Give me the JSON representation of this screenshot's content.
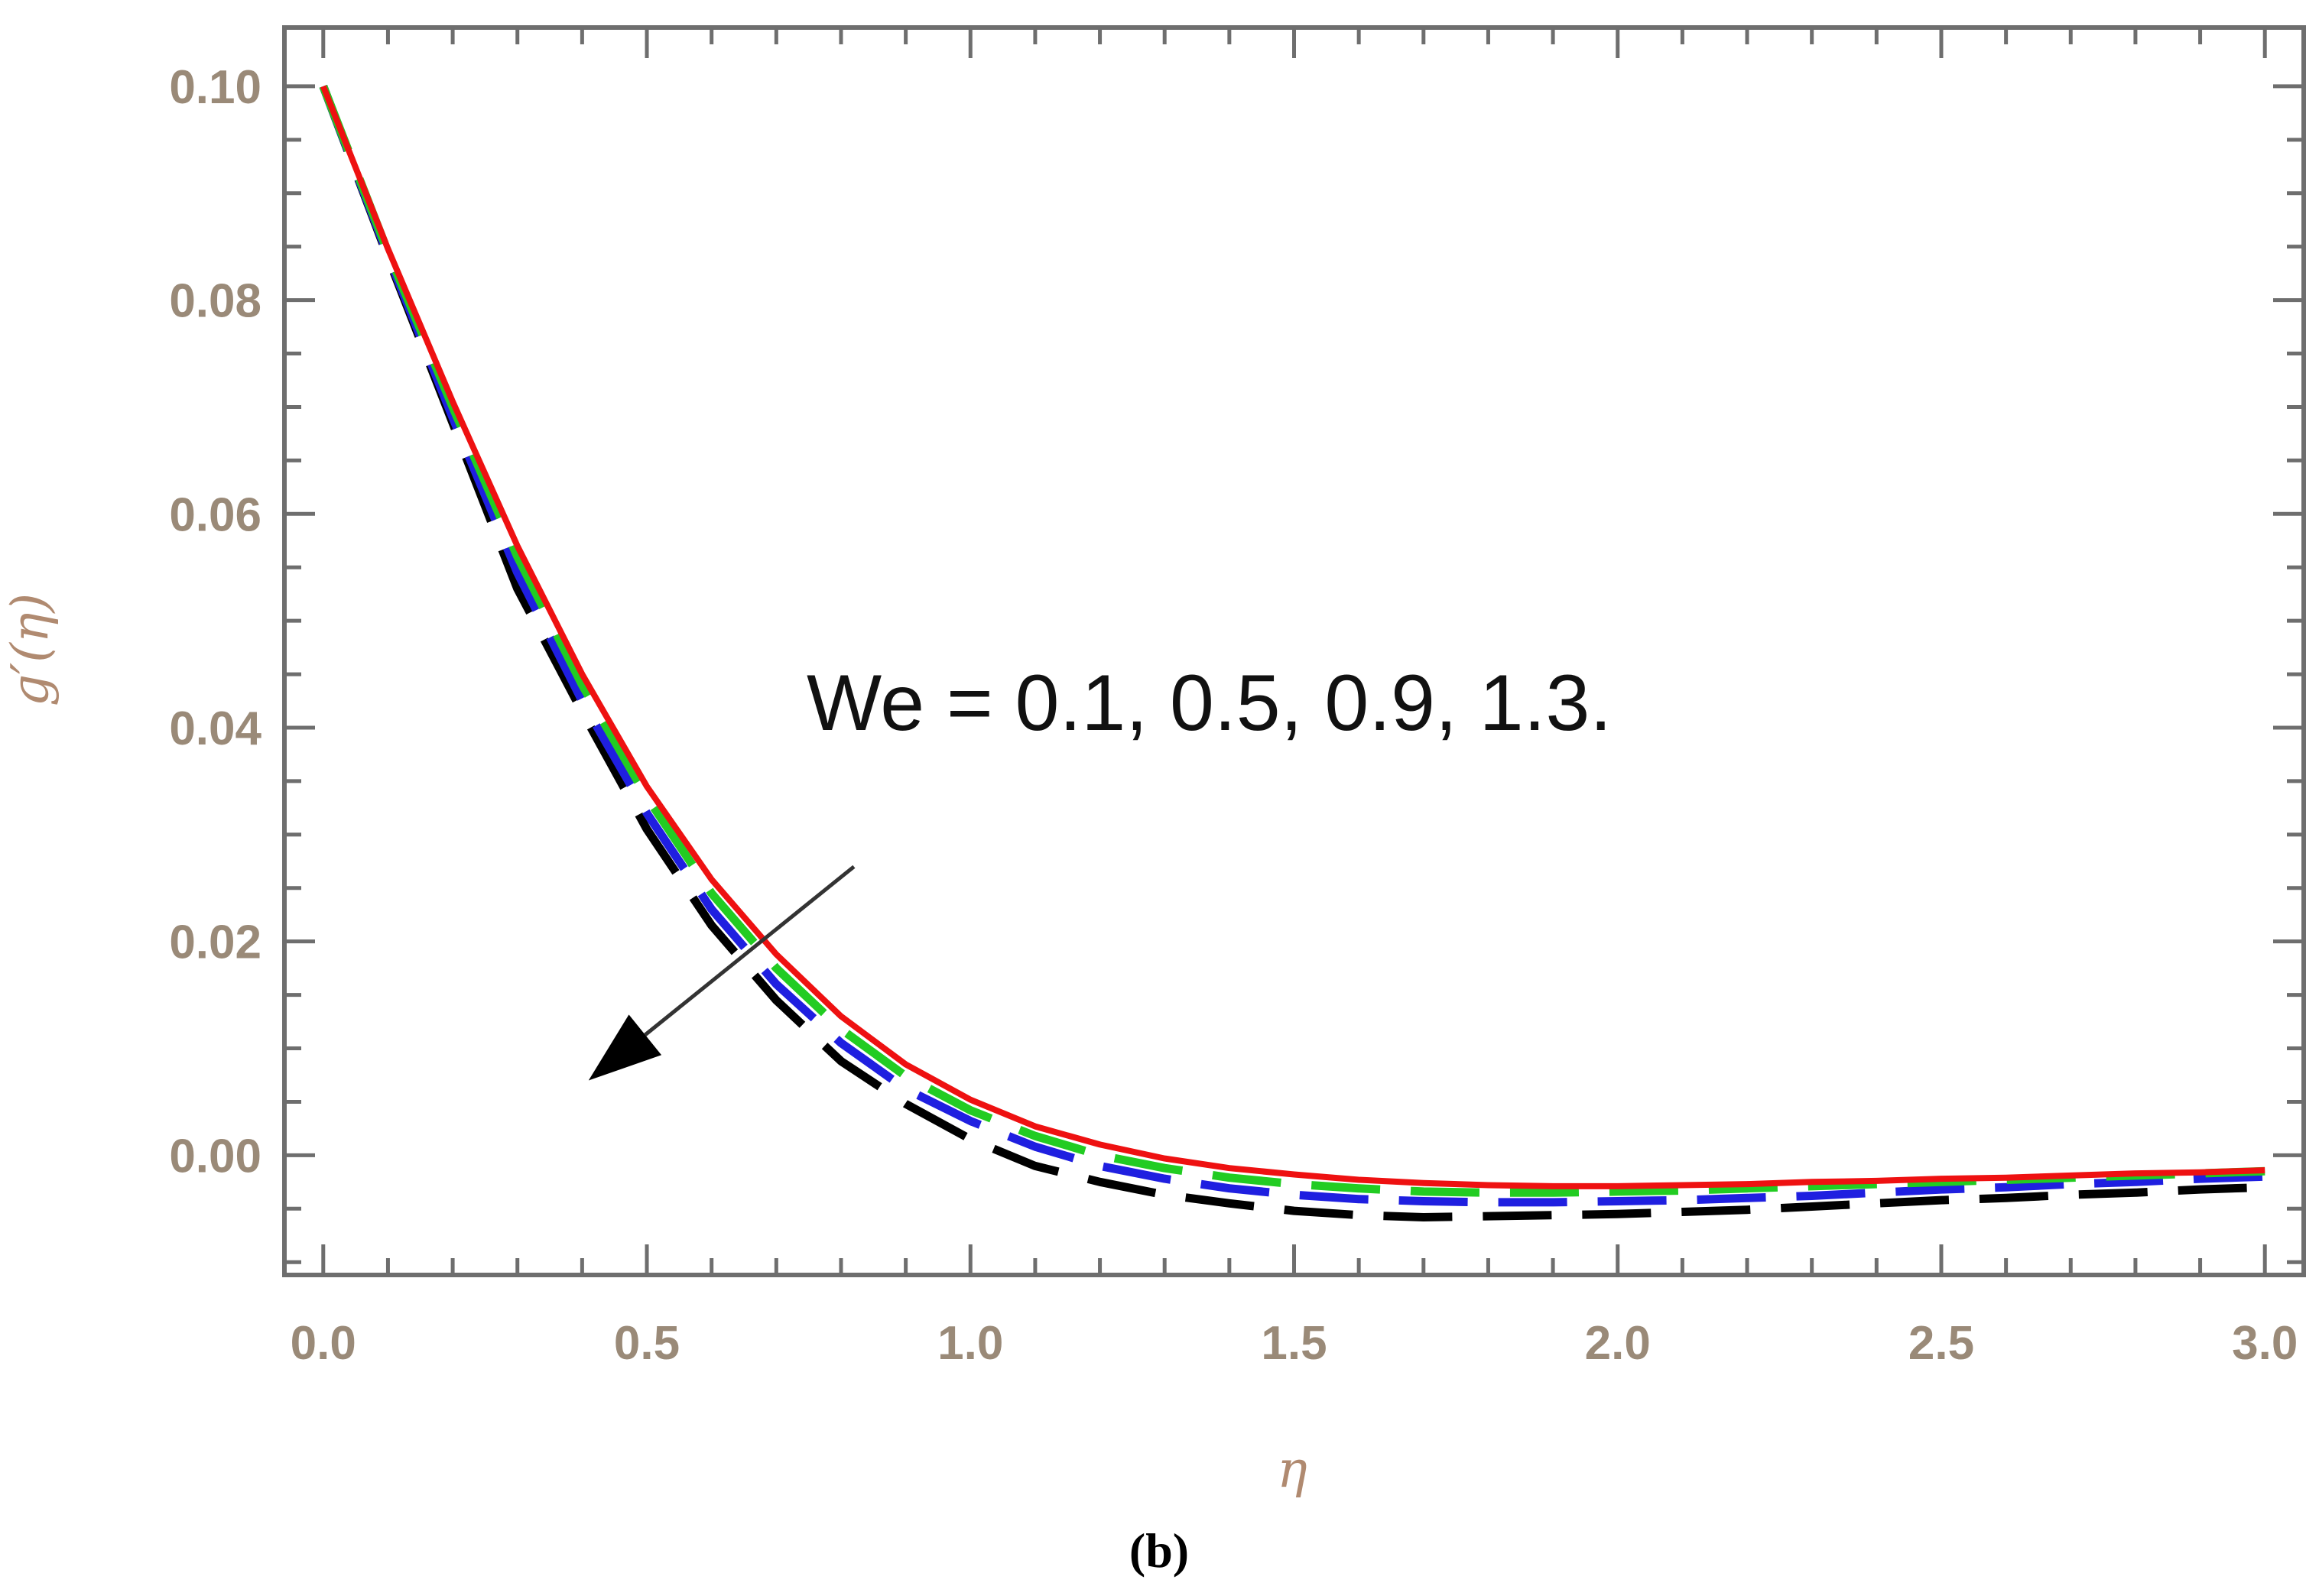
{
  "chart_data": {
    "type": "line",
    "title": "",
    "xlabel": "η",
    "ylabel": "g′(η)",
    "xlim": [
      -0.06,
      3.06
    ],
    "ylim": [
      -0.0112,
      0.1055
    ],
    "xticks": [
      {
        "value": 0.0,
        "label": "0.0"
      },
      {
        "value": 0.5,
        "label": "0.5"
      },
      {
        "value": 1.0,
        "label": "1.0"
      },
      {
        "value": 1.5,
        "label": "1.5"
      },
      {
        "value": 2.0,
        "label": "2.0"
      },
      {
        "value": 2.5,
        "label": "2.5"
      },
      {
        "value": 3.0,
        "label": "3.0"
      }
    ],
    "yticks": [
      {
        "value": 0.0,
        "label": "0.00"
      },
      {
        "value": 0.02,
        "label": "0.02"
      },
      {
        "value": 0.04,
        "label": "0.04"
      },
      {
        "value": 0.06,
        "label": "0.06"
      },
      {
        "value": 0.08,
        "label": "0.08"
      },
      {
        "value": 0.1,
        "label": "0.10"
      }
    ],
    "grid": false,
    "annotation": "We = 0.1, 0.5, 0.9, 1.3.",
    "arrow": {
      "from": [
        0.82,
        0.027
      ],
      "to": [
        0.41,
        0.007
      ]
    },
    "series": [
      {
        "color": "#000000",
        "dash": "dashed",
        "x": [
          0.0,
          0.1,
          0.2,
          0.3,
          0.4,
          0.5,
          0.6,
          0.7,
          0.8,
          0.9,
          1.0,
          1.1,
          1.2,
          1.3,
          1.4,
          1.5,
          1.6,
          1.7,
          1.8,
          1.9,
          2.0,
          2.1,
          2.2,
          2.3,
          2.4,
          2.5,
          2.6,
          2.7,
          2.8,
          2.9,
          3.0
        ],
        "y": [
          0.1,
          0.084,
          0.0685,
          0.053,
          0.0415,
          0.0305,
          0.0215,
          0.0145,
          0.0088,
          0.0048,
          0.0015,
          -0.001,
          -0.0025,
          -0.0037,
          -0.0045,
          -0.0052,
          -0.0056,
          -0.0058,
          -0.0057,
          -0.0056,
          -0.0055,
          -0.0053,
          -0.0051,
          -0.0048,
          -0.0045,
          -0.0042,
          -0.004,
          -0.0037,
          -0.0035,
          -0.0032,
          -0.003
        ]
      },
      {
        "color": "#1f1fe0",
        "dash": "dashed",
        "x": [
          0.0,
          0.1,
          0.2,
          0.3,
          0.4,
          0.5,
          0.6,
          0.7,
          0.8,
          0.9,
          1.0,
          1.1,
          1.2,
          1.3,
          1.4,
          1.5,
          1.6,
          1.7,
          1.8,
          1.9,
          2.0,
          2.1,
          2.2,
          2.3,
          2.4,
          2.5,
          2.6,
          2.7,
          2.8,
          2.9,
          3.0
        ],
        "y": [
          0.1,
          0.0842,
          0.069,
          0.0545,
          0.0425,
          0.032,
          0.023,
          0.016,
          0.0105,
          0.0062,
          0.0032,
          0.0008,
          -0.001,
          -0.0022,
          -0.0031,
          -0.0037,
          -0.0041,
          -0.0043,
          -0.0044,
          -0.0044,
          -0.0043,
          -0.0042,
          -0.004,
          -0.0038,
          -0.0035,
          -0.0032,
          -0.003,
          -0.0027,
          -0.0025,
          -0.0022,
          -0.002
        ]
      },
      {
        "color": "#22cc22",
        "dash": "dashed",
        "x": [
          0.0,
          0.1,
          0.2,
          0.3,
          0.4,
          0.5,
          0.6,
          0.7,
          0.8,
          0.9,
          1.0,
          1.1,
          1.2,
          1.3,
          1.4,
          1.5,
          1.6,
          1.7,
          1.8,
          1.9,
          2.0,
          2.1,
          2.2,
          2.3,
          2.4,
          2.5,
          2.6,
          2.7,
          2.8,
          2.9,
          3.0
        ],
        "y": [
          0.1,
          0.0845,
          0.07,
          0.056,
          0.044,
          0.0335,
          0.0245,
          0.0175,
          0.0118,
          0.0074,
          0.0042,
          0.0018,
          0.0,
          -0.0012,
          -0.0021,
          -0.0027,
          -0.0031,
          -0.0034,
          -0.0035,
          -0.0035,
          -0.0034,
          -0.0033,
          -0.0031,
          -0.0029,
          -0.0027,
          -0.0025,
          -0.0023,
          -0.0021,
          -0.0019,
          -0.0017,
          -0.0015
        ]
      },
      {
        "color": "#ee1111",
        "dash": "solid",
        "x": [
          0.0,
          0.1,
          0.2,
          0.3,
          0.4,
          0.5,
          0.6,
          0.7,
          0.8,
          0.9,
          1.0,
          1.1,
          1.2,
          1.3,
          1.4,
          1.5,
          1.6,
          1.7,
          1.8,
          1.9,
          2.0,
          2.1,
          2.2,
          2.3,
          2.4,
          2.5,
          2.6,
          2.7,
          2.8,
          2.9,
          3.0
        ],
        "y": [
          0.1,
          0.0848,
          0.0705,
          0.057,
          0.045,
          0.0345,
          0.0258,
          0.0188,
          0.013,
          0.0085,
          0.0052,
          0.0027,
          0.001,
          -0.0003,
          -0.0012,
          -0.0018,
          -0.0023,
          -0.0026,
          -0.0028,
          -0.0029,
          -0.0029,
          -0.0028,
          -0.0027,
          -0.0025,
          -0.0024,
          -0.0022,
          -0.0021,
          -0.0019,
          -0.0017,
          -0.0016,
          -0.0014
        ]
      }
    ]
  },
  "caption": "(b)"
}
